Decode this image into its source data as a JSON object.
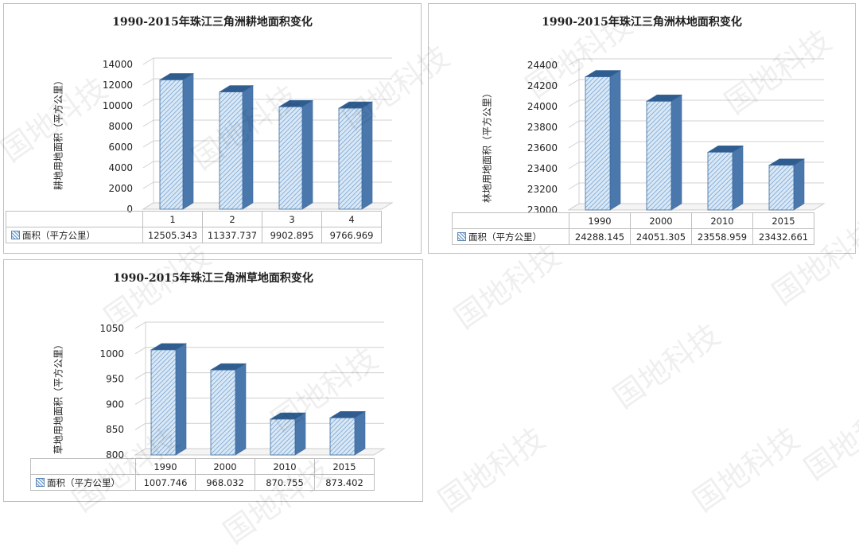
{
  "watermark_text": "国地科技",
  "colors": {
    "bar_front": "#d9e8f6",
    "bar_hatch": "#6c9acb",
    "bar_side": "#4a78ad",
    "bar_top": "#2f5d8f",
    "bar_outline": "#3d6a9c",
    "grid": "#d0d0d0",
    "floor": "#cccccc"
  },
  "chart_data": [
    {
      "type": "bar",
      "title": "1990-2015年珠江三角洲耕地面积变化",
      "ylabel": "耕地用地面积（平方公里）",
      "categories": [
        "1",
        "2",
        "3",
        "4"
      ],
      "series": [
        {
          "name": "面积（平方公里）",
          "values": [
            12505.343,
            11337.737,
            9902.895,
            9766.969
          ],
          "labels": [
            "12505.343",
            "11337.737",
            "9902.895",
            "9766.969"
          ]
        }
      ],
      "ylim": [
        0,
        14000
      ],
      "yticks": [
        "0",
        "2000",
        "4000",
        "6000",
        "8000",
        "10000",
        "12000",
        "14000"
      ],
      "grid": true,
      "legend": "data-table"
    },
    {
      "type": "bar",
      "title": "1990-2015年珠江三角洲林地面积变化",
      "ylabel": "林地用地面积（平方公里）",
      "categories": [
        "1990",
        "2000",
        "2010",
        "2015"
      ],
      "series": [
        {
          "name": "面积（平方公里）",
          "values": [
            24288.145,
            24051.305,
            23558.959,
            23432.661
          ],
          "labels": [
            "24288.145",
            "24051.305",
            "23558.959",
            "23432.661"
          ]
        }
      ],
      "ylim": [
        23000,
        24400
      ],
      "yticks": [
        "23000",
        "23200",
        "23400",
        "23600",
        "23800",
        "24000",
        "24200",
        "24400"
      ],
      "grid": true,
      "legend": "data-table"
    },
    {
      "type": "bar",
      "title": "1990-2015年珠江三角洲草地面积变化",
      "ylabel": "草地用地面积（平方公里）",
      "categories": [
        "1990",
        "2000",
        "2010",
        "2015"
      ],
      "series": [
        {
          "name": "面积（平方公里）",
          "values": [
            1007.746,
            968.032,
            870.755,
            873.402
          ],
          "labels": [
            "1007.746",
            "968.032",
            "870.755",
            "873.402"
          ]
        }
      ],
      "ylim": [
        800,
        1050
      ],
      "yticks": [
        "800",
        "850",
        "900",
        "950",
        "1000",
        "1050"
      ],
      "grid": true,
      "legend": "data-table"
    }
  ]
}
